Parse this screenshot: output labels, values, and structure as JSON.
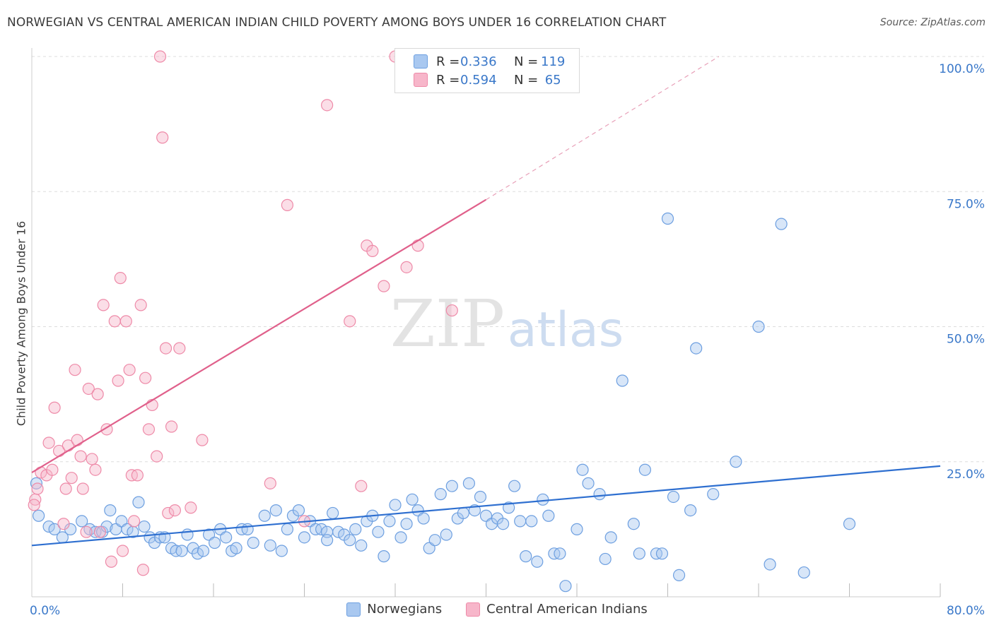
{
  "title": "NORWEGIAN VS CENTRAL AMERICAN INDIAN CHILD POVERTY AMONG BOYS UNDER 16 CORRELATION CHART",
  "source": "Source: ZipAtlas.com",
  "watermark": {
    "zip": "ZIP",
    "atlas": "atlas"
  },
  "colors": {
    "blue_fill": "#a9c8f0",
    "blue_stroke": "#6d9fe0",
    "blue_line": "#2e6fd0",
    "pink_fill": "#f7b6ca",
    "pink_stroke": "#ee8aa8",
    "pink_line": "#e0608b",
    "axis_label": "#3a78c9",
    "grid": "#dddddd"
  },
  "stats": {
    "r_label": "R =",
    "n_label": "N =",
    "series": [
      {
        "r": "0.336",
        "n": "119"
      },
      {
        "r": "0.594",
        "n": " 65"
      }
    ]
  },
  "chart_data": {
    "type": "scatter",
    "ylabel": "Child Poverty Among Boys Under 16",
    "xlim": [
      0,
      80
    ],
    "ylim": [
      0,
      100
    ],
    "x_tick_labels": [
      "0.0%",
      "80.0%"
    ],
    "y_ticks": [
      25,
      50,
      75,
      100
    ],
    "y_tick_labels": [
      "25.0%",
      "50.0%",
      "75.0%",
      "100.0%"
    ],
    "grid": "horizontal dashed",
    "legend_position": "bottom-center",
    "series": [
      {
        "name": "Norwegians",
        "trend": {
          "x": [
            0,
            80
          ],
          "y": [
            9.5,
            24.2
          ]
        },
        "points": [
          [
            0.4,
            21
          ],
          [
            0.6,
            15
          ],
          [
            1.5,
            13
          ],
          [
            2,
            12.5
          ],
          [
            2.7,
            11
          ],
          [
            3.4,
            12.5
          ],
          [
            4.4,
            14
          ],
          [
            5.1,
            12.5
          ],
          [
            5.6,
            12
          ],
          [
            6.2,
            12
          ],
          [
            6.6,
            13
          ],
          [
            6.9,
            16
          ],
          [
            7.4,
            12.5
          ],
          [
            7.9,
            14
          ],
          [
            8.4,
            12.5
          ],
          [
            8.9,
            12
          ],
          [
            9.4,
            17.5
          ],
          [
            9.9,
            13
          ],
          [
            10.4,
            11
          ],
          [
            10.8,
            10
          ],
          [
            11.3,
            11
          ],
          [
            11.7,
            11
          ],
          [
            12.3,
            9
          ],
          [
            12.7,
            8.5
          ],
          [
            13.2,
            8.5
          ],
          [
            13.7,
            11.5
          ],
          [
            14.2,
            9
          ],
          [
            14.6,
            8
          ],
          [
            15.1,
            8.5
          ],
          [
            15.6,
            11.5
          ],
          [
            16.1,
            10
          ],
          [
            16.6,
            12.5
          ],
          [
            17.1,
            11
          ],
          [
            17.6,
            8.5
          ],
          [
            18,
            9
          ],
          [
            18.5,
            12.5
          ],
          [
            19,
            12.5
          ],
          [
            19.5,
            10
          ],
          [
            20.5,
            15
          ],
          [
            21,
            9.5
          ],
          [
            21.5,
            16
          ],
          [
            22,
            8.5
          ],
          [
            22.5,
            12.5
          ],
          [
            23,
            15
          ],
          [
            23.5,
            16
          ],
          [
            24,
            11
          ],
          [
            24.5,
            14
          ],
          [
            25,
            12.5
          ],
          [
            25.5,
            12.5
          ],
          [
            26,
            12
          ],
          [
            26.5,
            15.5
          ],
          [
            27,
            12
          ],
          [
            27.5,
            11.5
          ],
          [
            28,
            10.5
          ],
          [
            28.5,
            12.5
          ],
          [
            29,
            9.5
          ],
          [
            29.5,
            14
          ],
          [
            30,
            15
          ],
          [
            30.5,
            12
          ],
          [
            31,
            7.5
          ],
          [
            31.5,
            14
          ],
          [
            32,
            17
          ],
          [
            32.5,
            11
          ],
          [
            33,
            13.5
          ],
          [
            33.5,
            18
          ],
          [
            34,
            16
          ],
          [
            34.5,
            14.5
          ],
          [
            35,
            9
          ],
          [
            35.5,
            10.5
          ],
          [
            36,
            19
          ],
          [
            36.5,
            11.5
          ],
          [
            37,
            20.5
          ],
          [
            37.5,
            14.5
          ],
          [
            38,
            15.5
          ],
          [
            38.5,
            21
          ],
          [
            39,
            16
          ],
          [
            39.5,
            18.5
          ],
          [
            40,
            15
          ],
          [
            40.5,
            13.5
          ],
          [
            41,
            14.5
          ],
          [
            41.5,
            13.5
          ],
          [
            42,
            16.5
          ],
          [
            42.5,
            20.5
          ],
          [
            43,
            14
          ],
          [
            43.5,
            7.5
          ],
          [
            44,
            14
          ],
          [
            44.5,
            6.5
          ],
          [
            45,
            18
          ],
          [
            45.5,
            15
          ],
          [
            46,
            8
          ],
          [
            46.5,
            8
          ],
          [
            47,
            2
          ],
          [
            48,
            12.5
          ],
          [
            48.5,
            23.5
          ],
          [
            49,
            21
          ],
          [
            50,
            19
          ],
          [
            50.5,
            7
          ],
          [
            51,
            11
          ],
          [
            52,
            40
          ],
          [
            53,
            13.5
          ],
          [
            53.5,
            8
          ],
          [
            54,
            23.5
          ],
          [
            55,
            8
          ],
          [
            56,
            70
          ],
          [
            56.5,
            18.5
          ],
          [
            57,
            4
          ],
          [
            58,
            16
          ],
          [
            58.5,
            46
          ],
          [
            60,
            19
          ],
          [
            62,
            25
          ],
          [
            64,
            50
          ],
          [
            65,
            6
          ],
          [
            66,
            69
          ],
          [
            68,
            4.5
          ],
          [
            72,
            13.5
          ],
          [
            55.5,
            8
          ],
          [
            26,
            10.5
          ]
        ]
      },
      {
        "name": "Central American Indians",
        "trend": {
          "x": [
            0,
            40
          ],
          "y": [
            23,
            73.5
          ]
        },
        "trend_dashed": {
          "x": [
            40,
            60.5
          ],
          "y": [
            73.5,
            100
          ]
        },
        "points": [
          [
            0.3,
            18
          ],
          [
            0.5,
            20
          ],
          [
            0.8,
            23
          ],
          [
            1.3,
            22.5
          ],
          [
            1.5,
            28.5
          ],
          [
            1.8,
            23.5
          ],
          [
            2,
            35
          ],
          [
            2.4,
            27
          ],
          [
            2.8,
            13.5
          ],
          [
            3,
            20
          ],
          [
            3.2,
            28
          ],
          [
            3.5,
            22
          ],
          [
            3.8,
            42
          ],
          [
            4,
            29
          ],
          [
            4.3,
            26
          ],
          [
            4.5,
            20
          ],
          [
            4.8,
            12
          ],
          [
            5,
            38.5
          ],
          [
            5.3,
            25.5
          ],
          [
            5.6,
            23.5
          ],
          [
            5.8,
            37.5
          ],
          [
            6,
            12
          ],
          [
            6.3,
            54
          ],
          [
            6.6,
            31
          ],
          [
            7,
            6.5
          ],
          [
            7.3,
            51
          ],
          [
            7.6,
            40
          ],
          [
            7.8,
            59
          ],
          [
            8,
            8.5
          ],
          [
            8.3,
            51
          ],
          [
            8.6,
            42
          ],
          [
            8.8,
            22.5
          ],
          [
            9,
            14
          ],
          [
            9.3,
            22.5
          ],
          [
            9.6,
            54
          ],
          [
            9.8,
            5
          ],
          [
            10,
            40.5
          ],
          [
            10.3,
            31
          ],
          [
            10.6,
            35.5
          ],
          [
            11,
            26
          ],
          [
            11.3,
            100
          ],
          [
            11.5,
            85
          ],
          [
            11.8,
            46
          ],
          [
            12,
            15.5
          ],
          [
            12.3,
            31.5
          ],
          [
            12.6,
            16
          ],
          [
            13,
            46
          ],
          [
            14,
            16.5
          ],
          [
            15,
            29
          ],
          [
            21,
            21
          ],
          [
            22.5,
            72.5
          ],
          [
            24,
            14
          ],
          [
            26,
            91
          ],
          [
            28,
            51
          ],
          [
            29,
            20.5
          ],
          [
            29.5,
            65
          ],
          [
            30,
            64
          ],
          [
            31,
            57.5
          ],
          [
            32,
            100
          ],
          [
            33,
            61
          ],
          [
            34,
            65
          ],
          [
            37,
            53
          ],
          [
            0.2,
            17
          ]
        ]
      }
    ]
  }
}
